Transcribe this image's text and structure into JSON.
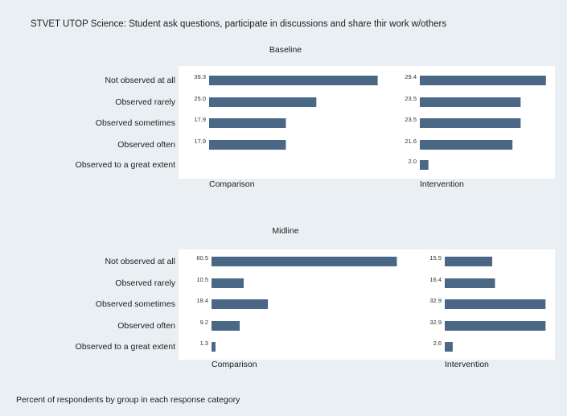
{
  "title": "STVET UTOP Science: Student ask questions, participate in discussions and share thir work w/others",
  "note": "Percent of respondents by group in each response category",
  "chart_data": [
    {
      "type": "bar",
      "title": "Baseline",
      "categories": [
        "Not observed at all",
        "Observed rarely",
        "Observed sometimes",
        "Observed often",
        "Observed to a great extent"
      ],
      "xlim": [
        0,
        45
      ],
      "series": [
        {
          "name": "Comparison",
          "color": "#4a6886",
          "values": [
            39.3,
            25.0,
            17.9,
            17.9,
            null
          ],
          "value_labels": [
            "39.3",
            "25.0",
            "17.9",
            "17.9",
            null
          ]
        },
        {
          "name": "Intervention",
          "color": "#4a6886",
          "values": [
            29.4,
            23.5,
            23.5,
            21.6,
            2.0
          ],
          "value_labels": [
            "29.4",
            "23.5",
            "23.5",
            "21.6",
            "2.0"
          ]
        }
      ]
    },
    {
      "type": "bar",
      "title": "Midline",
      "categories": [
        "Not observed at all",
        "Observed rarely",
        "Observed sometimes",
        "Observed often",
        "Observed to a great extent"
      ],
      "xlim": [
        0,
        63
      ],
      "series": [
        {
          "name": "Comparison",
          "color": "#4a6886",
          "values": [
            60.5,
            10.5,
            18.4,
            9.2,
            1.3
          ],
          "value_labels": [
            "60.5",
            "10.5",
            "18.4",
            "9.2",
            "1.3"
          ]
        },
        {
          "name": "Intervention",
          "color": "#4a6886",
          "values": [
            15.5,
            16.4,
            32.9,
            32.9,
            2.6
          ],
          "value_labels": [
            "15.5",
            "16.4",
            "32.9",
            "32.9",
            "2.6"
          ]
        }
      ]
    }
  ]
}
